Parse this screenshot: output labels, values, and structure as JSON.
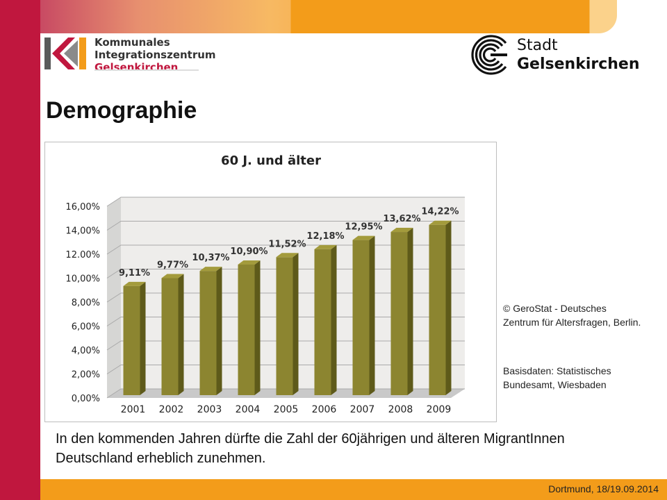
{
  "header": {
    "ki_logo_lines": [
      "Kommunales",
      "Integrationszentrum",
      "Gelsenkirchen"
    ],
    "city_logo_lines": [
      "Stadt",
      "Gelsenkirchen"
    ]
  },
  "page_title": "Demographie",
  "chart_data": {
    "type": "bar",
    "title": "60 J. und älter",
    "categories": [
      "2001",
      "2002",
      "2003",
      "2004",
      "2005",
      "2006",
      "2007",
      "2008",
      "2009"
    ],
    "values": [
      9.11,
      9.77,
      10.37,
      10.9,
      11.52,
      12.18,
      12.95,
      13.62,
      14.22
    ],
    "data_labels": [
      "9,11%",
      "9,77%",
      "10,37%",
      "10,90%",
      "11,52%",
      "12,18%",
      "12,95%",
      "13,62%",
      "14,22%"
    ],
    "y_ticks": [
      "0,00%",
      "2,00%",
      "4,00%",
      "6,00%",
      "8,00%",
      "10,00%",
      "12.00%",
      "14,00%",
      "16,00%"
    ],
    "ylim": [
      0,
      16
    ],
    "y_step": 2,
    "grid": true,
    "style": "3d-column",
    "colors": {
      "bar_front": "#8c8530",
      "bar_side": "#5e5a1a",
      "bar_top": "#a39b3c",
      "wall": "#eeedeb",
      "floor": "#c9c9c9"
    }
  },
  "source_note": "© GeroStat - Deutsches Zentrum für Altersfragen, Berlin.",
  "source_base": "Basisdaten: Statistisches Bundesamt, Wiesbaden",
  "caption": "In den kommenden Jahren dürfte die Zahl der 60jährigen und älteren MigrantInnen Deutschland  erheblich zunehmen.",
  "footer": {
    "date": "Dortmund, 18/19.09.2014"
  }
}
